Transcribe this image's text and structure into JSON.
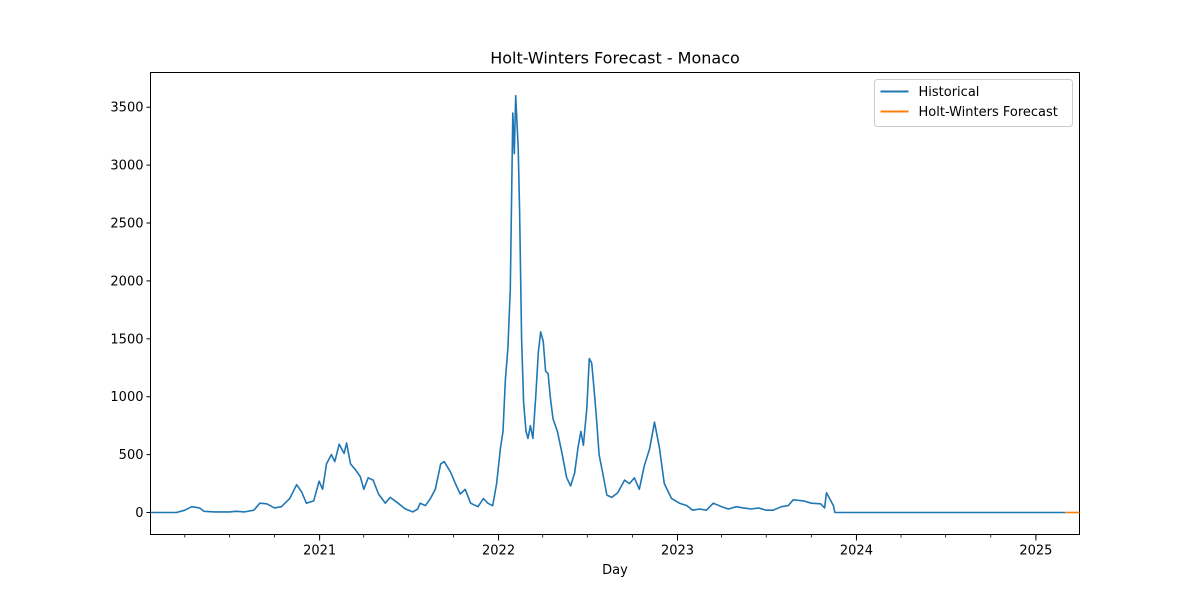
{
  "chart_data": {
    "type": "line",
    "title": "Holt-Winters Forecast - Monaco",
    "xlabel": "Day",
    "ylabel": "",
    "xlim": [
      "2020-01-22",
      "2025-03-31"
    ],
    "ylim": [
      -190,
      3800
    ],
    "x_ticks": [
      "2021-01-01",
      "2022-01-01",
      "2023-01-01",
      "2024-01-01",
      "2025-01-01"
    ],
    "x_tick_labels": [
      "2021",
      "2022",
      "2023",
      "2024",
      "2025"
    ],
    "y_ticks": [
      0,
      500,
      1000,
      1500,
      2000,
      2500,
      3000,
      3500
    ],
    "y_tick_labels": [
      "0",
      "500",
      "1000",
      "1500",
      "2000",
      "2500",
      "3000",
      "3500"
    ],
    "legend_position": "top-right",
    "grid": false,
    "series": [
      {
        "name": "Historical",
        "color": "#1f77b4",
        "points": [
          [
            "2020-01-22",
            0
          ],
          [
            "2020-03-15",
            0
          ],
          [
            "2020-04-01",
            20
          ],
          [
            "2020-04-15",
            50
          ],
          [
            "2020-05-01",
            40
          ],
          [
            "2020-05-10",
            10
          ],
          [
            "2020-06-01",
            5
          ],
          [
            "2020-07-01",
            5
          ],
          [
            "2020-07-15",
            10
          ],
          [
            "2020-08-01",
            5
          ],
          [
            "2020-08-20",
            20
          ],
          [
            "2020-09-01",
            80
          ],
          [
            "2020-09-15",
            75
          ],
          [
            "2020-10-01",
            40
          ],
          [
            "2020-10-15",
            50
          ],
          [
            "2020-11-01",
            120
          ],
          [
            "2020-11-15",
            240
          ],
          [
            "2020-11-25",
            180
          ],
          [
            "2020-12-05",
            80
          ],
          [
            "2020-12-20",
            100
          ],
          [
            "2020-12-31",
            270
          ],
          [
            "2021-01-07",
            200
          ],
          [
            "2021-01-15",
            420
          ],
          [
            "2021-01-25",
            500
          ],
          [
            "2021-02-01",
            440
          ],
          [
            "2021-02-10",
            590
          ],
          [
            "2021-02-20",
            510
          ],
          [
            "2021-02-25",
            600
          ],
          [
            "2021-03-05",
            420
          ],
          [
            "2021-03-15",
            370
          ],
          [
            "2021-03-25",
            310
          ],
          [
            "2021-04-01",
            200
          ],
          [
            "2021-04-10",
            300
          ],
          [
            "2021-04-20",
            280
          ],
          [
            "2021-05-01",
            160
          ],
          [
            "2021-05-15",
            80
          ],
          [
            "2021-05-25",
            130
          ],
          [
            "2021-06-10",
            80
          ],
          [
            "2021-06-25",
            30
          ],
          [
            "2021-07-10",
            5
          ],
          [
            "2021-07-20",
            30
          ],
          [
            "2021-07-25",
            80
          ],
          [
            "2021-08-05",
            60
          ],
          [
            "2021-08-15",
            120
          ],
          [
            "2021-08-25",
            200
          ],
          [
            "2021-09-05",
            420
          ],
          [
            "2021-09-12",
            440
          ],
          [
            "2021-09-25",
            350
          ],
          [
            "2021-10-05",
            250
          ],
          [
            "2021-10-15",
            160
          ],
          [
            "2021-10-25",
            200
          ],
          [
            "2021-11-05",
            80
          ],
          [
            "2021-11-20",
            50
          ],
          [
            "2021-12-01",
            120
          ],
          [
            "2021-12-10",
            80
          ],
          [
            "2021-12-20",
            60
          ],
          [
            "2021-12-28",
            250
          ],
          [
            "2022-01-05",
            560
          ],
          [
            "2022-01-10",
            700
          ],
          [
            "2022-01-15",
            1150
          ],
          [
            "2022-01-20",
            1420
          ],
          [
            "2022-01-25",
            1930
          ],
          [
            "2022-01-30",
            3450
          ],
          [
            "2022-02-02",
            3100
          ],
          [
            "2022-02-05",
            3600
          ],
          [
            "2022-02-10",
            3150
          ],
          [
            "2022-02-13",
            2600
          ],
          [
            "2022-02-17",
            1500
          ],
          [
            "2022-02-21",
            950
          ],
          [
            "2022-02-26",
            700
          ],
          [
            "2022-03-02",
            640
          ],
          [
            "2022-03-07",
            750
          ],
          [
            "2022-03-12",
            640
          ],
          [
            "2022-03-18",
            1010
          ],
          [
            "2022-03-23",
            1380
          ],
          [
            "2022-03-28",
            1560
          ],
          [
            "2022-04-02",
            1480
          ],
          [
            "2022-04-07",
            1220
          ],
          [
            "2022-04-12",
            1200
          ],
          [
            "2022-04-17",
            980
          ],
          [
            "2022-04-22",
            810
          ],
          [
            "2022-05-01",
            700
          ],
          [
            "2022-05-10",
            520
          ],
          [
            "2022-05-20",
            300
          ],
          [
            "2022-05-28",
            230
          ],
          [
            "2022-06-05",
            340
          ],
          [
            "2022-06-12",
            560
          ],
          [
            "2022-06-18",
            700
          ],
          [
            "2022-06-23",
            580
          ],
          [
            "2022-06-30",
            900
          ],
          [
            "2022-07-05",
            1330
          ],
          [
            "2022-07-10",
            1290
          ],
          [
            "2022-07-15",
            1050
          ],
          [
            "2022-07-20",
            800
          ],
          [
            "2022-07-25",
            500
          ],
          [
            "2022-08-01",
            350
          ],
          [
            "2022-08-10",
            150
          ],
          [
            "2022-08-20",
            130
          ],
          [
            "2022-09-01",
            170
          ],
          [
            "2022-09-15",
            280
          ],
          [
            "2022-09-25",
            250
          ],
          [
            "2022-10-05",
            300
          ],
          [
            "2022-10-15",
            200
          ],
          [
            "2022-10-25",
            400
          ],
          [
            "2022-11-05",
            550
          ],
          [
            "2022-11-15",
            780
          ],
          [
            "2022-11-25",
            560
          ],
          [
            "2022-12-05",
            250
          ],
          [
            "2022-12-20",
            120
          ],
          [
            "2023-01-05",
            80
          ],
          [
            "2023-01-20",
            60
          ],
          [
            "2023-02-01",
            20
          ],
          [
            "2023-02-15",
            30
          ],
          [
            "2023-03-01",
            20
          ],
          [
            "2023-03-15",
            80
          ],
          [
            "2023-04-01",
            50
          ],
          [
            "2023-04-15",
            30
          ],
          [
            "2023-05-01",
            50
          ],
          [
            "2023-05-15",
            40
          ],
          [
            "2023-06-01",
            30
          ],
          [
            "2023-06-15",
            40
          ],
          [
            "2023-07-01",
            20
          ],
          [
            "2023-07-15",
            20
          ],
          [
            "2023-08-01",
            50
          ],
          [
            "2023-08-15",
            60
          ],
          [
            "2023-08-25",
            110
          ],
          [
            "2023-09-15",
            100
          ],
          [
            "2023-10-01",
            80
          ],
          [
            "2023-10-20",
            75
          ],
          [
            "2023-10-28",
            40
          ],
          [
            "2023-11-01",
            170
          ],
          [
            "2023-11-15",
            60
          ],
          [
            "2023-11-18",
            0
          ],
          [
            "2024-06-01",
            0
          ],
          [
            "2025-03-02",
            0
          ]
        ]
      },
      {
        "name": "Holt-Winters Forecast",
        "color": "#ff7f0e",
        "points": [
          [
            "2025-03-02",
            0
          ],
          [
            "2025-03-31",
            0
          ]
        ]
      }
    ]
  }
}
